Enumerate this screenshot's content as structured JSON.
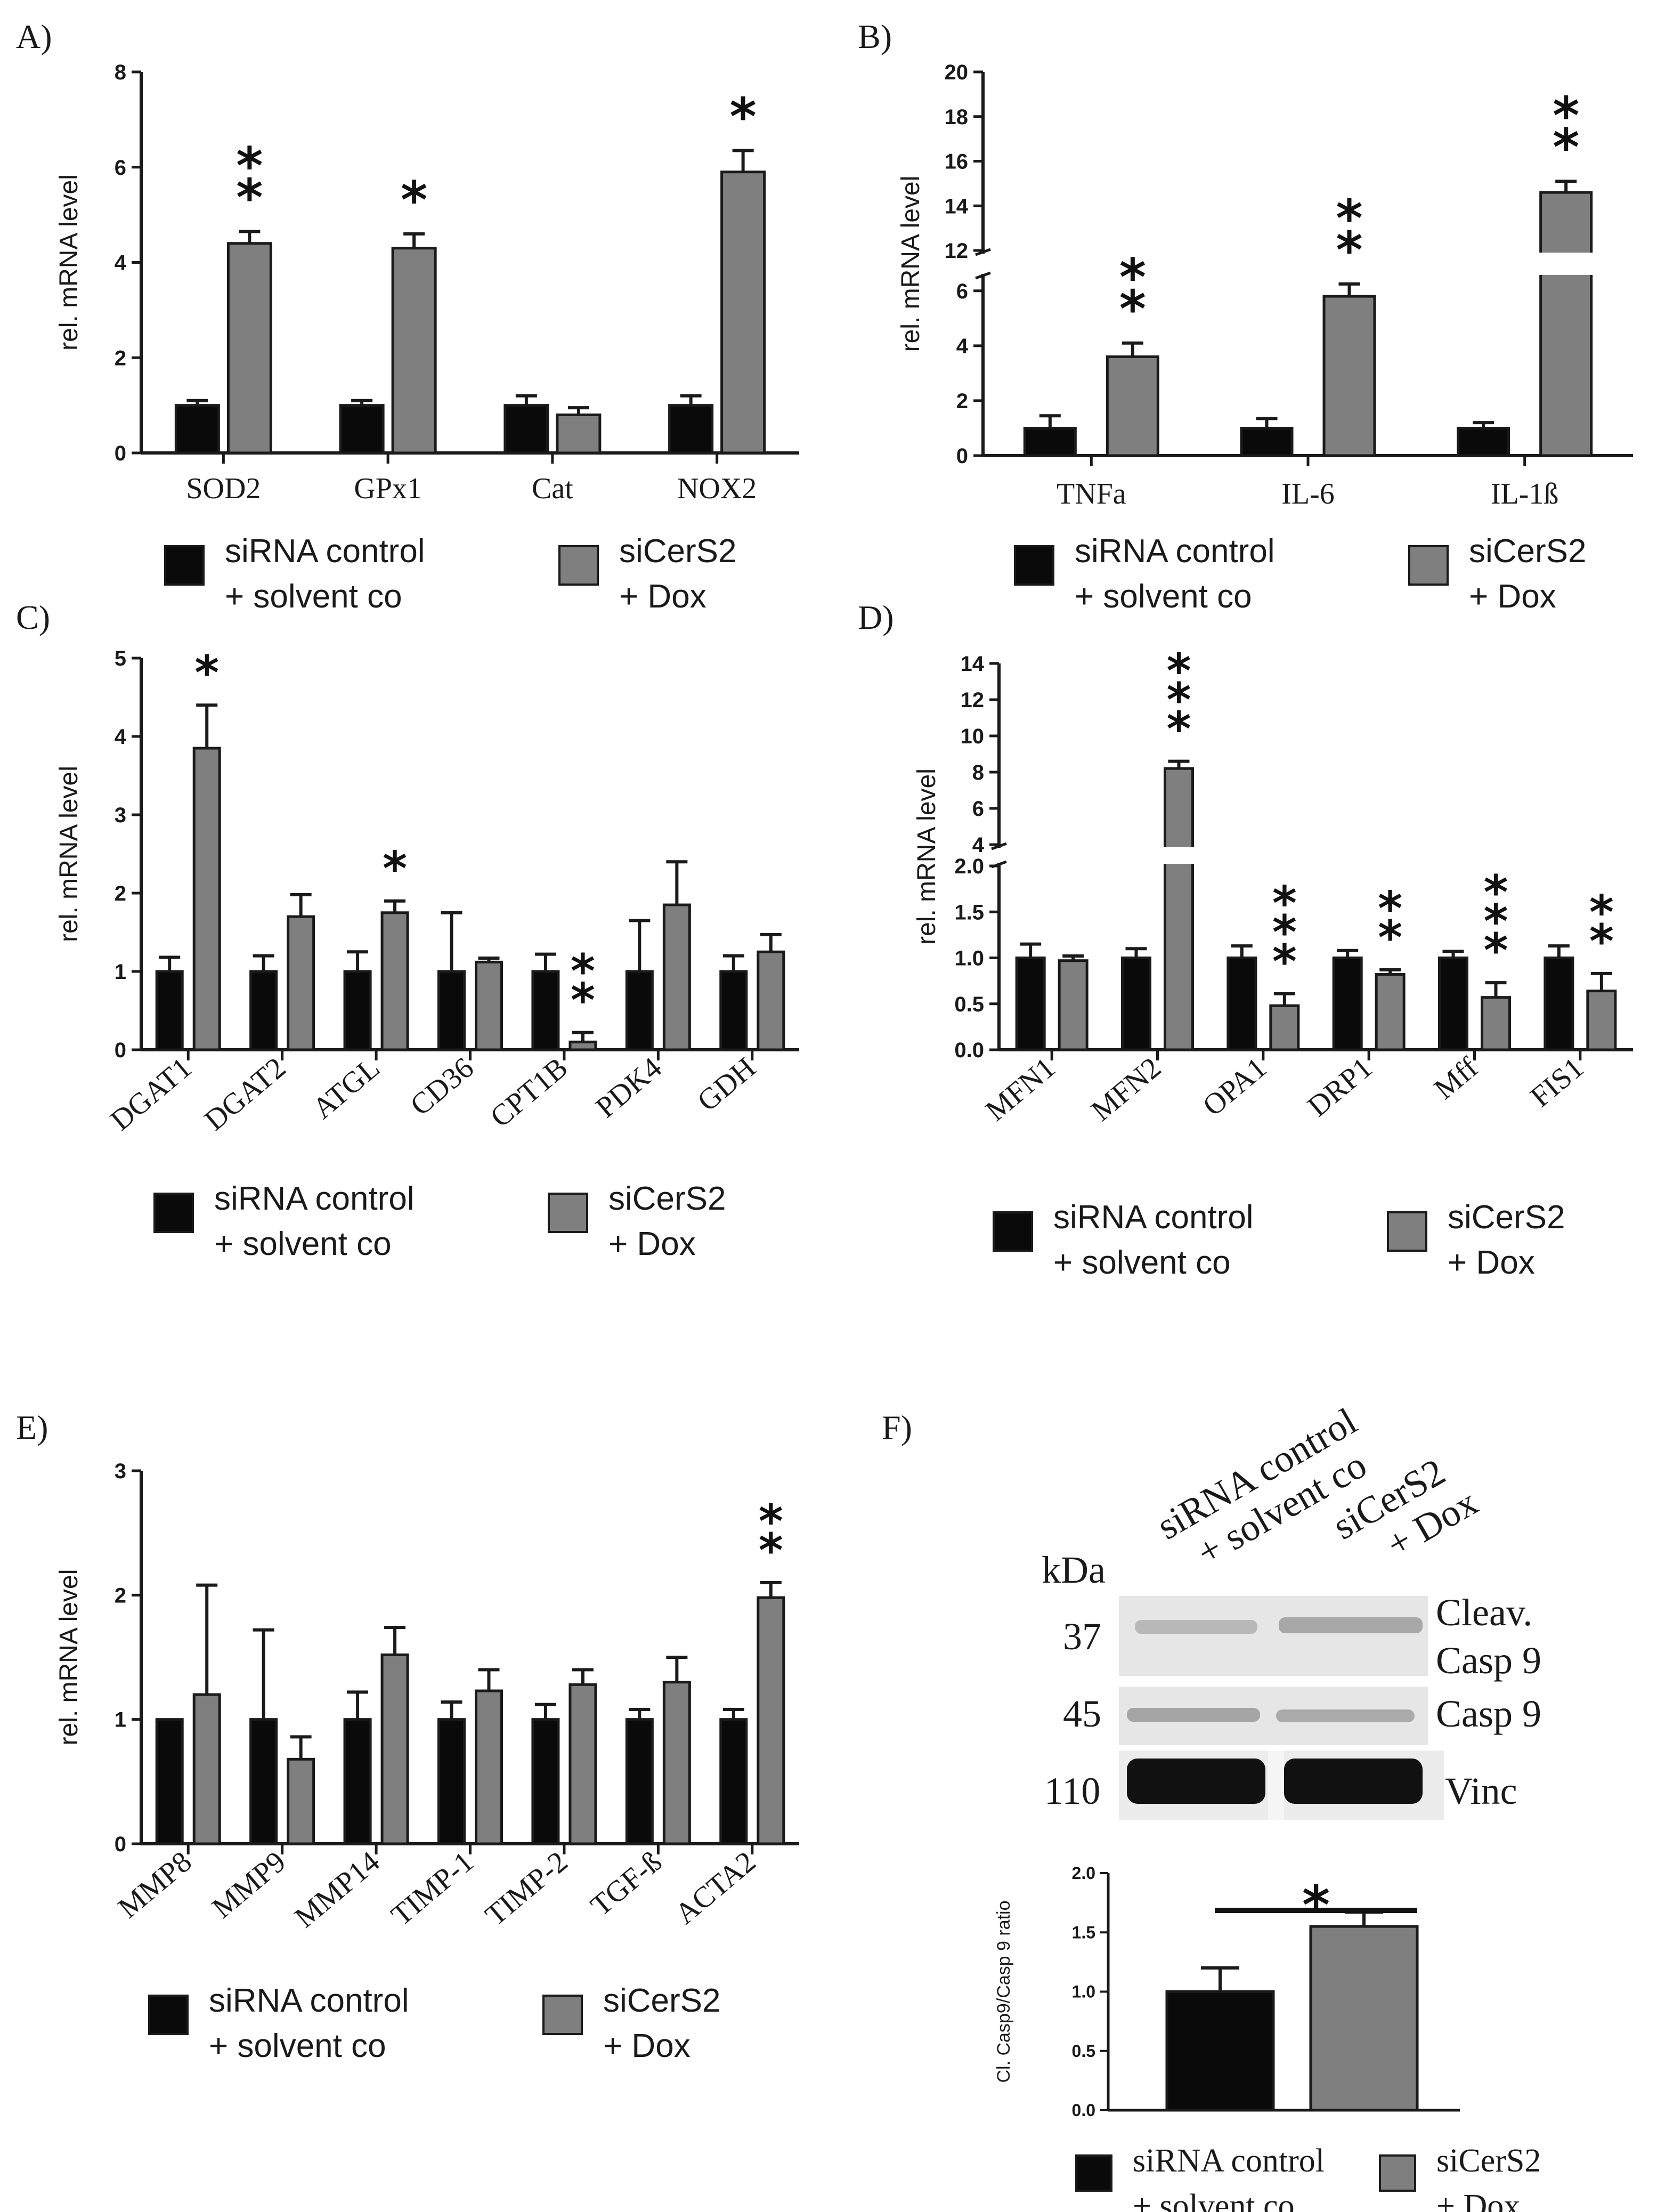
{
  "colors": {
    "control": "#0a0a0a",
    "treated": "#7f7f7f",
    "axis": "#1a1a1a"
  },
  "legend": {
    "control_line1": "siRNA control",
    "control_line2": "+ solvent co",
    "treated_line1": "siCerS2",
    "treated_line2": "+ Dox"
  },
  "chart_data": [
    {
      "panel": "A)",
      "type": "bar",
      "ylabel": "rel. mRNA level",
      "ylim": [
        0,
        8
      ],
      "yticks": [
        "0",
        "2",
        "4",
        "6",
        "8"
      ],
      "categories": [
        "SOD2",
        "GPx1",
        "Cat",
        "NOX2"
      ],
      "series": [
        {
          "name": "siRNA control + solvent co",
          "values": [
            1.0,
            1.0,
            1.0,
            1.0
          ],
          "errors": [
            0.1,
            0.1,
            0.2,
            0.2
          ]
        },
        {
          "name": "siCerS2 + Dox",
          "values": [
            4.4,
            4.3,
            0.8,
            5.9
          ],
          "errors": [
            0.25,
            0.3,
            0.15,
            0.45
          ]
        }
      ],
      "significance": [
        "**",
        "*",
        "",
        "*"
      ]
    },
    {
      "panel": "B)",
      "type": "bar",
      "ylabel": "rel. mRNA level",
      "ylim": [
        0,
        20
      ],
      "axis_break": [
        6.5,
        12
      ],
      "yticks": [
        "0",
        "2",
        "4",
        "6",
        "12",
        "14",
        "16",
        "18",
        "20"
      ],
      "categories": [
        "TNFa",
        "IL-6",
        "IL-1ß"
      ],
      "series": [
        {
          "name": "siRNA control + solvent co",
          "values": [
            1.0,
            1.0,
            1.0
          ],
          "errors": [
            0.45,
            0.35,
            0.2
          ]
        },
        {
          "name": "siCerS2 + Dox",
          "values": [
            3.6,
            5.8,
            14.6
          ],
          "errors": [
            0.5,
            0.45,
            0.5
          ]
        }
      ],
      "significance": [
        "**",
        "**",
        "**"
      ]
    },
    {
      "panel": "C)",
      "type": "bar",
      "ylabel": "rel. mRNA level",
      "ylim": [
        0,
        5
      ],
      "yticks": [
        "0",
        "1",
        "2",
        "3",
        "4",
        "5"
      ],
      "categories": [
        "DGAT1",
        "DGAT2",
        "ATGL",
        "CD36",
        "CPT1B",
        "PDK4",
        "GDH"
      ],
      "series": [
        {
          "name": "siRNA control + solvent co",
          "values": [
            1.0,
            1.0,
            1.0,
            1.0,
            1.0,
            1.0,
            1.0
          ],
          "errors": [
            0.18,
            0.2,
            0.25,
            0.75,
            0.22,
            0.65,
            0.2
          ]
        },
        {
          "name": "siCerS2 + Dox",
          "values": [
            3.85,
            1.7,
            1.75,
            1.12,
            0.1,
            1.85,
            1.25
          ],
          "errors": [
            0.55,
            0.28,
            0.15,
            0.05,
            0.12,
            0.55,
            0.22
          ]
        }
      ],
      "significance": [
        "*",
        "",
        "*",
        "",
        "**",
        "",
        ""
      ]
    },
    {
      "panel": "D)",
      "type": "bar",
      "ylabel": "rel. mRNA level",
      "ylim": [
        0,
        14
      ],
      "axis_break": [
        2.0,
        4
      ],
      "yticks": [
        "0.0",
        "0.5",
        "1.0",
        "1.5",
        "2.0",
        "4",
        "6",
        "8",
        "10",
        "12",
        "14"
      ],
      "categories": [
        "MFN1",
        "MFN2",
        "OPA1",
        "DRP1",
        "Mff",
        "FIS1"
      ],
      "series": [
        {
          "name": "siRNA control + solvent co",
          "values": [
            1.0,
            1.0,
            1.0,
            1.0,
            1.0,
            1.0
          ],
          "errors": [
            0.15,
            0.1,
            0.13,
            0.08,
            0.07,
            0.13
          ]
        },
        {
          "name": "siCerS2 + Dox",
          "values": [
            0.97,
            8.2,
            0.48,
            0.82,
            0.57,
            0.64
          ],
          "errors": [
            0.05,
            0.4,
            0.13,
            0.05,
            0.16,
            0.19
          ]
        }
      ],
      "significance": [
        "",
        "***",
        "***",
        "**",
        "***",
        "**"
      ]
    },
    {
      "panel": "E)",
      "type": "bar",
      "ylabel": "rel. mRNA level",
      "ylim": [
        0,
        3
      ],
      "yticks": [
        "0",
        "1",
        "2",
        "3"
      ],
      "categories": [
        "MMP8",
        "MMP9",
        "MMP14",
        "TIMP-1",
        "TIMP-2",
        "TGF-ß",
        "ACTA2"
      ],
      "series": [
        {
          "name": "siRNA control + solvent co",
          "values": [
            1.0,
            1.0,
            1.0,
            1.0,
            1.0,
            1.0,
            1.0
          ],
          "errors": [
            0.0,
            0.72,
            0.22,
            0.14,
            0.12,
            0.08,
            0.08
          ]
        },
        {
          "name": "siCerS2 + Dox",
          "values": [
            1.2,
            0.68,
            1.52,
            1.23,
            1.28,
            1.3,
            1.98
          ],
          "errors": [
            0.88,
            0.18,
            0.22,
            0.17,
            0.12,
            0.2,
            0.12
          ]
        }
      ],
      "significance": [
        "",
        "",
        "",
        "",
        "",
        "",
        "**"
      ]
    },
    {
      "panel": "F)",
      "type": "bar",
      "ylabel": "Cl. Casp9/Casp 9 ratio",
      "ylim": [
        0,
        2.0
      ],
      "yticks": [
        "0.0",
        "0.5",
        "1.0",
        "1.5",
        "2.0"
      ],
      "categories": [
        "siRNA control + solvent co",
        "siCerS2 + Dox"
      ],
      "values": [
        1.0,
        1.55
      ],
      "errors": [
        0.2,
        0.12
      ],
      "significance": "*"
    }
  ],
  "blot": {
    "kda_label": "kDa",
    "lane1_line1": "siRNA control",
    "lane1_line2": "+ solvent co",
    "lane2_line1": "siCerS2",
    "lane2_line2": "+ Dox",
    "rows": [
      {
        "kda": "37",
        "label1": "Cleav.",
        "label2": "Casp 9"
      },
      {
        "kda": "45",
        "label1": "Casp 9",
        "label2": ""
      },
      {
        "kda": "110",
        "label1": "Vinc",
        "label2": ""
      }
    ]
  }
}
